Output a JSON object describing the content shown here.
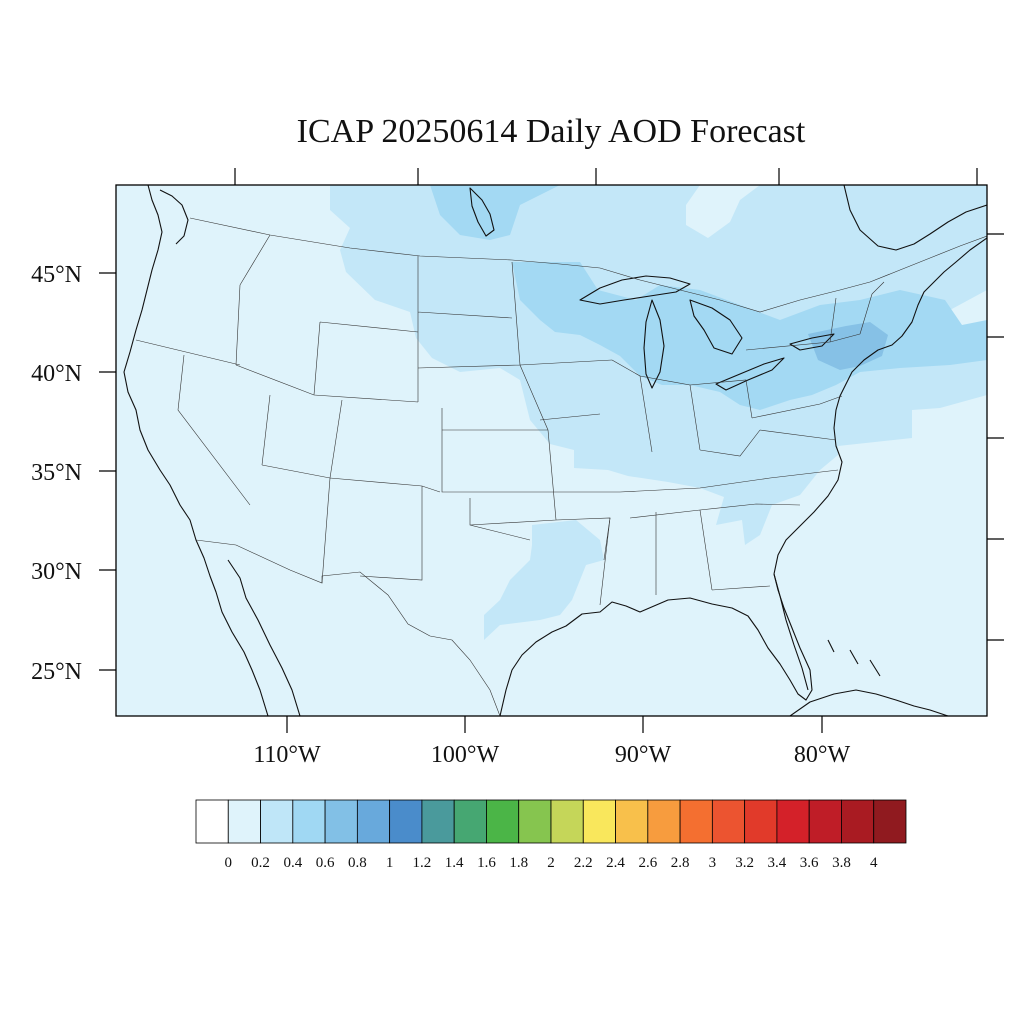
{
  "title": "ICAP 20250614 Daily AOD Forecast",
  "map": {
    "lat_labels": [
      "45°N",
      "40°N",
      "35°N",
      "30°N",
      "25°N"
    ],
    "lon_labels": [
      "110°W",
      "100°W",
      "90°W",
      "80°W"
    ],
    "ocean_color": "#dff3fb"
  },
  "colorbar": {
    "colors": [
      "#ffffff",
      "#dff3fb",
      "#bfe6f8",
      "#a0d8f3",
      "#82c0e6",
      "#68a9dc",
      "#4a8ccb",
      "#4a9a9c",
      "#46a772",
      "#4bb547",
      "#86c54f",
      "#c5d659",
      "#f9e75c",
      "#f8c04b",
      "#f79c3e",
      "#f46f30",
      "#ec5430",
      "#e13a2a",
      "#d42129",
      "#bf1d27",
      "#a91b22",
      "#901a1f"
    ],
    "labels": [
      "0",
      "0.2",
      "0.4",
      "0.6",
      "0.8",
      "1",
      "1.2",
      "1.4",
      "1.6",
      "1.8",
      "2",
      "2.2",
      "2.4",
      "2.6",
      "2.8",
      "3",
      "3.2",
      "3.4",
      "3.6",
      "3.8",
      "4"
    ]
  }
}
